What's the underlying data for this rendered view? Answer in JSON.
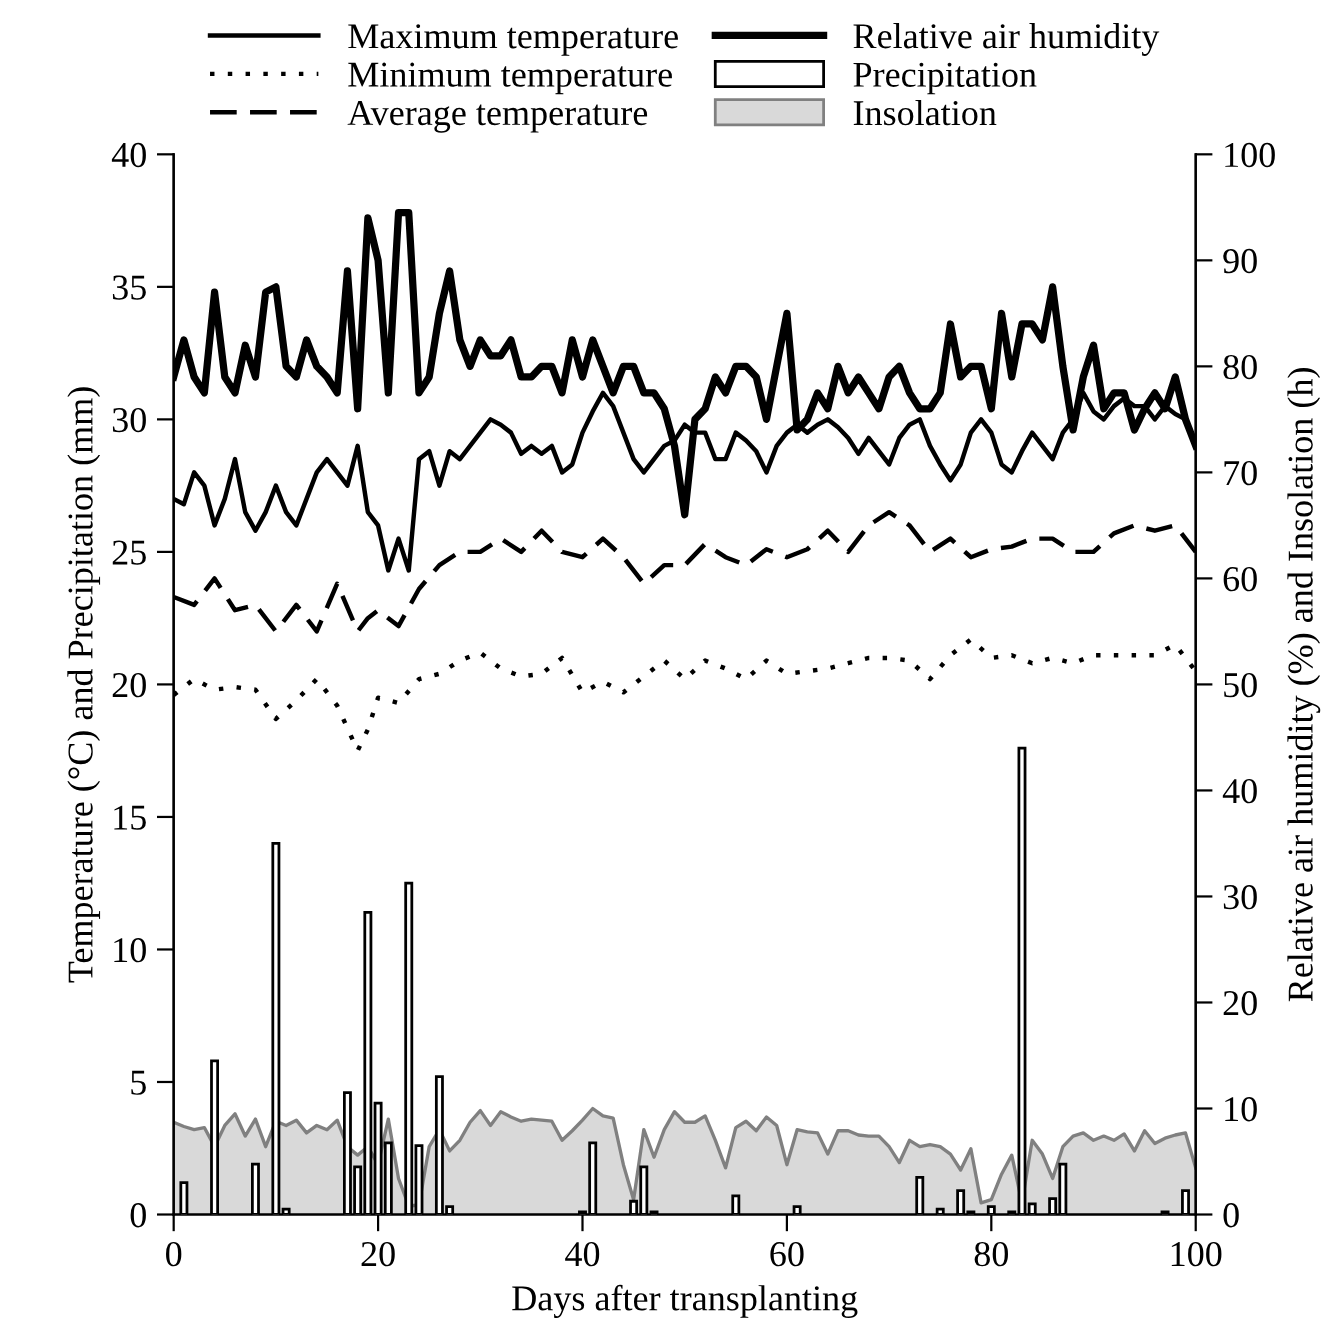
{
  "chart_data": {
    "type": "line",
    "xlabel": "Days after transplanting",
    "ylabel": "Temperature (°C) and Precipitation (mm)",
    "y2label": "Relative air humidity (%) and Insolation (h)",
    "xlim": [
      0,
      100
    ],
    "xticks": [
      0,
      20,
      40,
      60,
      80,
      100
    ],
    "ylim": [
      0,
      40
    ],
    "yticks": [
      0,
      5,
      10,
      15,
      20,
      25,
      30,
      35,
      40
    ],
    "y2lim": [
      0,
      100
    ],
    "y2ticks": [
      0,
      10,
      20,
      30,
      40,
      50,
      60,
      70,
      80,
      90,
      100
    ],
    "grid": false,
    "legend": "top",
    "series": [
      {
        "name": "Maximum temperature",
        "line_style": "solid",
        "color": "#000000",
        "x": [
          0,
          1,
          2,
          3,
          4,
          5,
          6,
          7,
          8,
          9,
          10,
          11,
          12,
          13,
          14,
          15,
          16,
          17,
          18,
          19,
          20,
          21,
          22,
          23,
          24,
          25,
          26,
          27,
          28,
          29,
          30,
          31,
          32,
          33,
          34,
          35,
          36,
          37,
          38,
          39,
          40,
          41,
          42,
          43,
          44,
          45,
          46,
          47,
          48,
          49,
          50,
          51,
          52,
          53,
          54,
          55,
          56,
          57,
          58,
          59,
          60,
          61,
          62,
          63,
          64,
          65,
          66,
          67,
          68,
          69,
          70,
          71,
          72,
          73,
          74,
          75,
          76,
          77,
          78,
          79,
          80,
          81,
          82,
          83,
          84,
          85,
          86,
          87,
          88,
          89,
          90,
          91,
          92,
          93,
          94,
          95,
          96,
          97,
          98,
          99,
          100
        ],
        "values": [
          27,
          26.8,
          28,
          27.5,
          26,
          27,
          28.5,
          26.5,
          25.8,
          26.5,
          27.5,
          26.5,
          26,
          27,
          28,
          28.5,
          28,
          27.5,
          29,
          26.5,
          26,
          24.3,
          25.5,
          24.3,
          28.5,
          28.8,
          27.5,
          28.8,
          28.5,
          29,
          29.5,
          30,
          29.8,
          29.5,
          28.7,
          29,
          28.7,
          29,
          28,
          28.3,
          29.5,
          30.3,
          31,
          30.5,
          29.5,
          28.5,
          28,
          28.5,
          29,
          29.2,
          29.8,
          29.5,
          29.5,
          28.5,
          28.5,
          29.5,
          29.2,
          28.8,
          28,
          29,
          29.5,
          29.8,
          29.5,
          29.8,
          30,
          29.7,
          29.3,
          28.7,
          29.3,
          28.8,
          28.3,
          29.3,
          29.8,
          30,
          29,
          28.3,
          27.7,
          28.3,
          29.5,
          30,
          29.5,
          28.3,
          28,
          28.8,
          29.5,
          29,
          28.5,
          29.5,
          30,
          31,
          30.3,
          30,
          30.5,
          30.8,
          30.5,
          30.5,
          30,
          30.5,
          30.2,
          30,
          29
        ]
      },
      {
        "name": "Minimum temperature",
        "line_style": "dotted",
        "color": "#000000",
        "x": [
          0,
          2,
          4,
          6,
          8,
          10,
          12,
          14,
          16,
          18,
          19,
          20,
          22,
          24,
          26,
          28,
          30,
          32,
          34,
          36,
          38,
          40,
          42,
          44,
          46,
          48,
          50,
          52,
          54,
          56,
          58,
          60,
          62,
          64,
          66,
          68,
          70,
          72,
          74,
          76,
          78,
          80,
          82,
          84,
          86,
          88,
          90,
          92,
          94,
          96,
          98,
          100
        ],
        "values": [
          19.6,
          20.2,
          19.8,
          19.9,
          19.8,
          18.7,
          19.4,
          20.2,
          19.2,
          17.5,
          18.3,
          19.5,
          19.3,
          20.2,
          20.4,
          20.9,
          21.2,
          20.6,
          20.3,
          20.4,
          21,
          19.7,
          20.1,
          19.7,
          20.3,
          20.9,
          20.2,
          20.9,
          20.6,
          20.2,
          20.9,
          20.4,
          20.5,
          20.6,
          20.8,
          21,
          21,
          20.9,
          20.2,
          21.1,
          21.7,
          21,
          21.1,
          20.8,
          21,
          20.8,
          21.1,
          21.1,
          21.1,
          21.1,
          21.5,
          20.5
        ]
      },
      {
        "name": "Average temperature",
        "line_style": "dashed",
        "color": "#000000",
        "x": [
          0,
          2,
          4,
          6,
          8,
          10,
          12,
          14,
          16,
          18,
          19,
          20,
          22,
          24,
          26,
          28,
          30,
          32,
          34,
          36,
          38,
          40,
          42,
          44,
          46,
          48,
          50,
          52,
          54,
          56,
          58,
          60,
          62,
          64,
          66,
          68,
          70,
          72,
          74,
          76,
          78,
          80,
          82,
          84,
          86,
          88,
          90,
          92,
          94,
          96,
          98,
          100
        ],
        "values": [
          23.3,
          23,
          24,
          22.8,
          23,
          22,
          23,
          22,
          23.8,
          22,
          22.5,
          22.8,
          22.2,
          23.6,
          24.5,
          25,
          25,
          25.5,
          25,
          25.8,
          25,
          24.8,
          25.5,
          24.8,
          23.8,
          24.5,
          24.5,
          25.3,
          24.8,
          24.5,
          25.1,
          24.8,
          25.1,
          25.8,
          25,
          26,
          26.5,
          26,
          25,
          25.5,
          24.8,
          25.1,
          25.2,
          25.5,
          25.5,
          25,
          25,
          25.7,
          26,
          25.8,
          26,
          25
        ]
      },
      {
        "name": "Relative air humidity",
        "line_style": "solid",
        "axis": "y2",
        "color": "#000000",
        "x": [
          0,
          1,
          2,
          3,
          4,
          5,
          6,
          7,
          8,
          9,
          10,
          11,
          12,
          13,
          14,
          15,
          16,
          17,
          18,
          19,
          20,
          21,
          22,
          23,
          24,
          25,
          26,
          27,
          28,
          29,
          30,
          31,
          32,
          33,
          34,
          35,
          36,
          37,
          38,
          39,
          40,
          41,
          42,
          43,
          44,
          45,
          46,
          47,
          48,
          49,
          50,
          51,
          52,
          53,
          54,
          55,
          56,
          57,
          58,
          59,
          60,
          61,
          62,
          63,
          64,
          65,
          66,
          67,
          68,
          69,
          70,
          71,
          72,
          73,
          74,
          75,
          76,
          77,
          78,
          79,
          80,
          81,
          82,
          83,
          84,
          85,
          86,
          87,
          88,
          89,
          90,
          91,
          92,
          93,
          94,
          95,
          96,
          97,
          98,
          99,
          100
        ],
        "values": [
          79,
          82.5,
          79,
          77.5,
          87,
          79,
          77.5,
          82,
          79,
          87,
          87.5,
          80,
          79,
          82.5,
          80,
          79,
          77.5,
          89,
          76,
          94,
          90,
          77.5,
          94.5,
          94.5,
          77.5,
          79,
          85,
          89,
          82.5,
          80,
          82.5,
          81,
          81,
          82.5,
          79,
          79,
          80,
          80,
          77.5,
          82.5,
          79,
          82.5,
          80,
          77.5,
          80,
          80,
          77.5,
          77.5,
          76,
          72.5,
          66,
          75,
          76,
          79,
          77.5,
          80,
          80,
          79,
          75,
          80,
          85,
          74,
          75,
          77.5,
          76,
          80,
          77.5,
          79,
          77.5,
          76,
          79,
          80,
          77.5,
          76,
          76,
          77.5,
          84,
          79,
          80,
          80,
          76,
          85,
          79,
          84,
          84,
          82.5,
          87.5,
          80,
          74,
          79,
          82,
          76,
          77.5,
          77.5,
          74,
          76,
          77.5,
          76,
          79,
          75,
          72.5
        ]
      },
      {
        "name": "Precipitation",
        "type": "bar",
        "color": "#ffffff",
        "x": [
          1,
          4,
          8,
          10,
          11,
          17,
          18,
          19,
          20,
          21,
          23,
          24,
          26,
          27,
          40,
          41,
          45,
          46,
          47,
          55,
          61,
          73,
          75,
          77,
          78,
          80,
          82,
          83,
          84,
          86,
          87,
          97,
          99
        ],
        "values": [
          1.2,
          5.8,
          1.9,
          14,
          0.2,
          4.6,
          1.8,
          11.4,
          4.2,
          2.7,
          12.5,
          2.6,
          5.2,
          0.3,
          0.1,
          2.7,
          0.5,
          1.8,
          0.1,
          0.7,
          0.3,
          1.4,
          0.2,
          0.9,
          0.1,
          0.3,
          0.1,
          17.6,
          0.4,
          0.6,
          1.9,
          0.1,
          0.9
        ]
      },
      {
        "name": "Insolation",
        "type": "area",
        "axis": "y2",
        "color": "#d9d9d9",
        "x": [
          0,
          1,
          2,
          3,
          4,
          5,
          6,
          7,
          8,
          9,
          10,
          11,
          12,
          13,
          14,
          15,
          16,
          17,
          18,
          19,
          20,
          21,
          22,
          23,
          24,
          25,
          26,
          27,
          28,
          29,
          30,
          31,
          32,
          33,
          34,
          35,
          36,
          37,
          38,
          39,
          40,
          41,
          42,
          43,
          44,
          45,
          46,
          47,
          48,
          49,
          50,
          51,
          52,
          53,
          54,
          55,
          56,
          57,
          58,
          59,
          60,
          61,
          62,
          63,
          64,
          65,
          66,
          67,
          68,
          69,
          70,
          71,
          72,
          73,
          74,
          75,
          76,
          77,
          78,
          79,
          80,
          81,
          82,
          83,
          84,
          85,
          86,
          87,
          88,
          89,
          90,
          91,
          92,
          93,
          94,
          95,
          96,
          97,
          98,
          99,
          100
        ],
        "values": [
          8.7,
          8.3,
          8,
          8.2,
          6.4,
          8.4,
          9.5,
          7.4,
          9,
          6.4,
          8.8,
          8.4,
          8.9,
          7.7,
          8.4,
          8,
          8.9,
          6.4,
          5.6,
          6.4,
          4.7,
          9,
          3.4,
          0.8,
          0.9,
          6.4,
          8,
          6,
          7,
          8.7,
          9.8,
          8.4,
          9.7,
          9.2,
          8.8,
          9,
          8.9,
          8.8,
          7,
          7.9,
          8.9,
          10,
          9.3,
          9.1,
          4.7,
          1.4,
          8,
          5.4,
          8,
          9.7,
          8.7,
          8.7,
          9.3,
          7,
          4.4,
          8.2,
          8.8,
          7.9,
          9.2,
          8.4,
          4.7,
          8,
          7.8,
          7.7,
          5.7,
          7.9,
          7.9,
          7.5,
          7.4,
          7.4,
          6.4,
          4.9,
          7,
          6.4,
          6.6,
          6.4,
          5.7,
          4.2,
          6.2,
          1.1,
          1.4,
          3.8,
          5.6,
          1.1,
          7,
          5.7,
          3.4,
          6.4,
          7.4,
          7.7,
          7,
          7.4,
          7,
          7.6,
          6,
          7.9,
          6.7,
          7.2,
          7.5,
          7.7,
          4.4
        ]
      }
    ]
  }
}
